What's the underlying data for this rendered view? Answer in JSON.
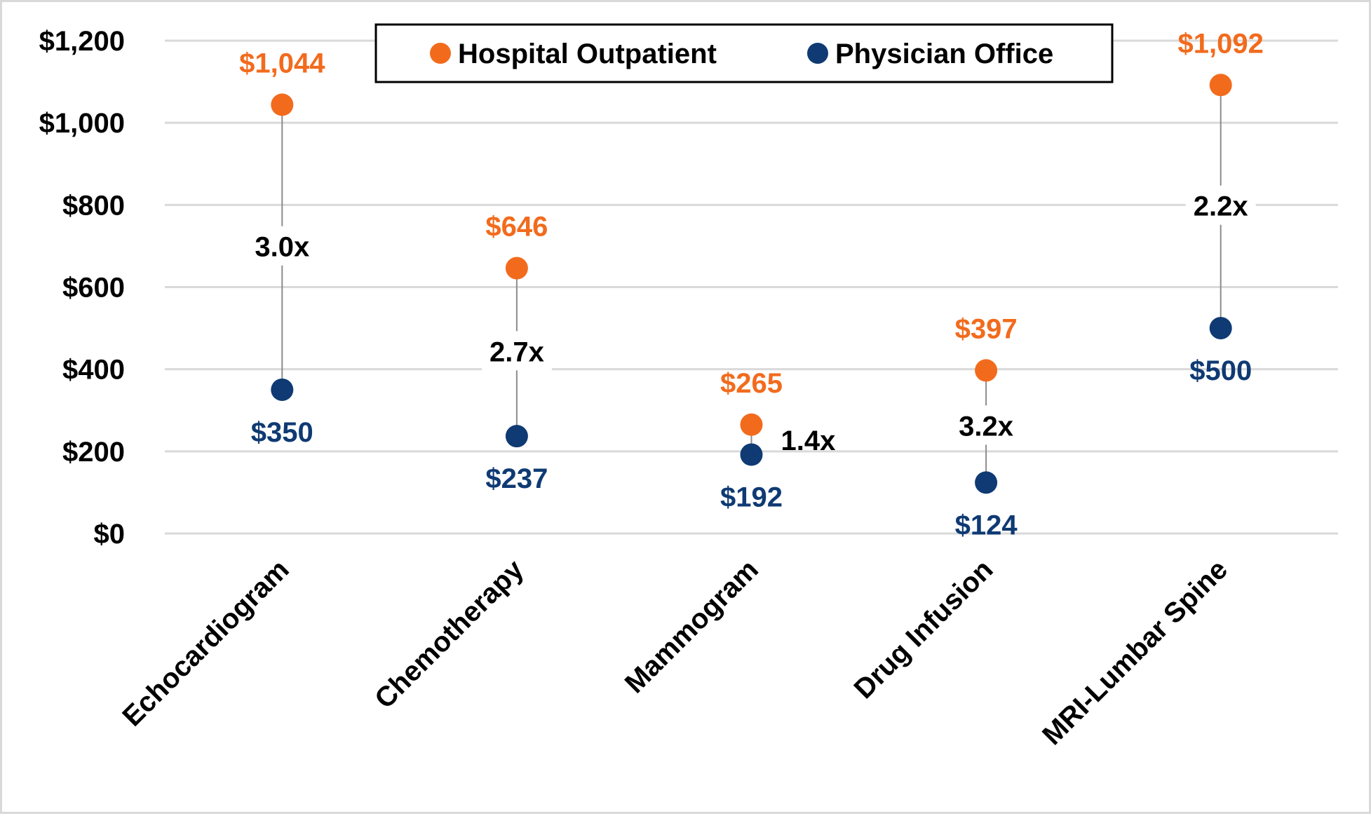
{
  "chart_data": {
    "type": "scatter",
    "subtype": "dumbbell",
    "categories": [
      "Echocardiogram",
      "Chemotherapy",
      "Mammogram",
      "Drug Infusion",
      "MRI-Lumbar Spine"
    ],
    "series": [
      {
        "name": "Hospital Outpatient",
        "color": "#f26b1d",
        "values": [
          1044,
          646,
          265,
          397,
          1092
        ],
        "labels": [
          "$1,044",
          "$646",
          "$265",
          "$397",
          "$1,092"
        ]
      },
      {
        "name": "Physician Office",
        "color": "#0f3a73",
        "values": [
          350,
          237,
          192,
          124,
          500
        ],
        "labels": [
          "$350",
          "$237",
          "$192",
          "$124",
          "$500"
        ]
      }
    ],
    "ratios": [
      "3.0x",
      "2.7x",
      "1.4x",
      "3.2x",
      "2.2x"
    ],
    "ylim": [
      0,
      1200
    ],
    "yticks": [
      0,
      200,
      400,
      600,
      800,
      1000,
      1200
    ],
    "ytick_labels": [
      "$0",
      "$200",
      "$400",
      "$600",
      "$800",
      "$1,000",
      "$1,200"
    ],
    "grid": true,
    "legend_position": "top-center",
    "title": "",
    "xlabel": "",
    "ylabel": ""
  }
}
